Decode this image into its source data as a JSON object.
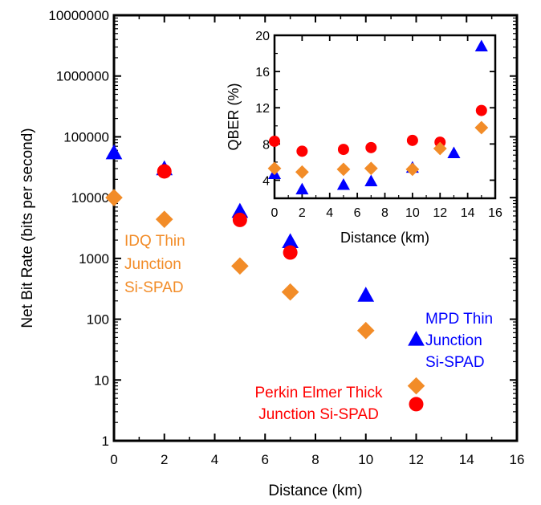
{
  "colors": {
    "idq": "#f28c28",
    "mpd": "#0000ff",
    "pe": "#ff0000"
  },
  "chart_data": [
    {
      "type": "scatter",
      "xlabel": "Distance (km)",
      "ylabel": "Net Bit Rate (bits per second)",
      "xlim": [
        0,
        16
      ],
      "ylim": [
        1,
        10000000
      ],
      "yscale": "log",
      "x_ticks": [
        "0",
        "2",
        "4",
        "6",
        "8",
        "10",
        "12",
        "14",
        "16"
      ],
      "y_ticks": [
        "1",
        "10",
        "100",
        "1000",
        "10000",
        "100000",
        "1000000",
        "10000000"
      ],
      "series": [
        {
          "marker": "triangle",
          "color": "#0000ff",
          "x": [
            0,
            2,
            5,
            7,
            10,
            12
          ],
          "y": [
            55000,
            30000,
            6000,
            1900,
            250,
            47
          ]
        },
        {
          "marker": "circle",
          "color": "#ff0000",
          "x": [
            2,
            5,
            7,
            12
          ],
          "y": [
            27000,
            4300,
            1250,
            4
          ]
        },
        {
          "marker": "diamond",
          "color": "#f28c28",
          "x": [
            0,
            2,
            5,
            7,
            10,
            12
          ],
          "y": [
            10000,
            4400,
            750,
            280,
            65,
            8
          ]
        }
      ],
      "annotations": [
        {
          "lines": [
            "IDQ Thin",
            "Junction",
            "Si-SPAD"
          ],
          "color": "#f28c28"
        },
        {
          "lines": [
            "MPD Thin",
            "Junction",
            "Si-SPAD"
          ],
          "color": "#0000ff"
        },
        {
          "lines": [
            "Perkin Elmer Thick",
            "Junction Si-SPAD"
          ],
          "color": "#ff0000"
        }
      ]
    },
    {
      "type": "scatter",
      "xlabel": "Distance (km)",
      "ylabel": "QBER (%)",
      "xlim": [
        0,
        16
      ],
      "ylim": [
        2,
        20
      ],
      "x_ticks": [
        "0",
        "2",
        "4",
        "6",
        "8",
        "10",
        "12",
        "14",
        "16"
      ],
      "y_ticks": [
        "4",
        "8",
        "12",
        "16",
        "20"
      ],
      "series": [
        {
          "marker": "triangle",
          "color": "#0000ff",
          "x": [
            0,
            2,
            5,
            7,
            10,
            13,
            15
          ],
          "y": [
            4.7,
            3.0,
            3.5,
            3.9,
            5.4,
            7.0,
            18.8
          ]
        },
        {
          "marker": "circle",
          "color": "#ff0000",
          "x": [
            0,
            2,
            5,
            7,
            10,
            12,
            15
          ],
          "y": [
            8.3,
            7.2,
            7.4,
            7.6,
            8.4,
            8.2,
            11.7
          ]
        },
        {
          "marker": "diamond",
          "color": "#f28c28",
          "x": [
            0,
            2,
            5,
            7,
            10,
            12,
            15
          ],
          "y": [
            5.3,
            4.9,
            5.2,
            5.3,
            5.2,
            7.5,
            9.8
          ]
        }
      ]
    }
  ]
}
